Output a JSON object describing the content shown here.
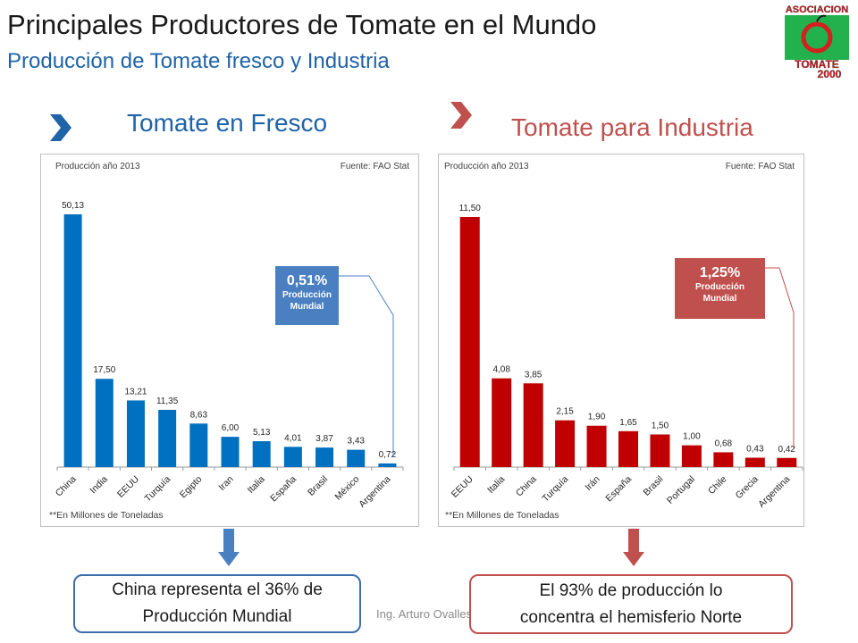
{
  "header": {
    "title": "Principales Productores de Tomate en el Mundo",
    "subtitle": "Producción de Tomate fresco y Industria"
  },
  "logo": {
    "line1": "ASOCIACION",
    "line2": "TOMATE",
    "line3": "2000"
  },
  "sections": {
    "fresh": {
      "title": "Tomate en Fresco"
    },
    "industry": {
      "title": "Tomate para Industria"
    }
  },
  "chart_data": [
    {
      "type": "bar",
      "header_left": "Producción año 2013",
      "header_right": "Fuente: FAO Stat",
      "footnote": "**En Millones de Toneladas",
      "categories": [
        "China",
        "India",
        "EEUU",
        "Turquía",
        "Egipto",
        "Iran",
        "Italia",
        "España",
        "Brasil",
        "México",
        "Argentina"
      ],
      "values": [
        50.13,
        17.5,
        13.21,
        11.35,
        8.63,
        6.0,
        5.13,
        4.01,
        3.87,
        3.43,
        0.72
      ],
      "value_labels": [
        "50,13",
        "17,50",
        "13,21",
        "11,35",
        "8,63",
        "6,00",
        "5,13",
        "4,01",
        "3,87",
        "3,43",
        "0,72"
      ],
      "color": "#0070c0",
      "ylim": [
        0,
        50.13
      ],
      "callout": {
        "value": "0,51%",
        "label_line1": "Producción",
        "label_line2": "Mundial",
        "color": "#4a7fc1"
      }
    },
    {
      "type": "bar",
      "header_left": "Producción año 2013",
      "header_right": "Fuente: FAO Stat",
      "footnote": "**En Millones de Toneladas",
      "categories": [
        "EEUU",
        "Italia",
        "China",
        "Turquía",
        "Irán",
        "España",
        "Brasil",
        "Portugal",
        "Chile",
        "Grecia",
        "Argentina"
      ],
      "values": [
        11.5,
        4.08,
        3.85,
        2.15,
        1.9,
        1.65,
        1.5,
        1.0,
        0.68,
        0.43,
        0.42
      ],
      "value_labels": [
        "11,50",
        "4,08",
        "3,85",
        "2,15",
        "1,90",
        "1,65",
        "1,50",
        "1,00",
        "0,68",
        "0,43",
        "0,42"
      ],
      "color": "#c00000",
      "ylim": [
        0,
        11.5
      ],
      "callout": {
        "value": "1,25%",
        "label_line1": "Producción",
        "label_line2": "Mundial",
        "color": "#c0504d"
      }
    }
  ],
  "boxes": {
    "left": {
      "line1": "China representa el 36% de",
      "line2": "Producción Mundial"
    },
    "right": {
      "line1": "El 93% de producción lo",
      "line2": "concentra el hemisferio Norte"
    }
  },
  "author": "Ing. Arturo Ovalles",
  "colors": {
    "blue_title": "#1f63a8",
    "red_title": "#c0504d",
    "blue_bar": "#0070c0",
    "red_bar": "#c00000"
  }
}
